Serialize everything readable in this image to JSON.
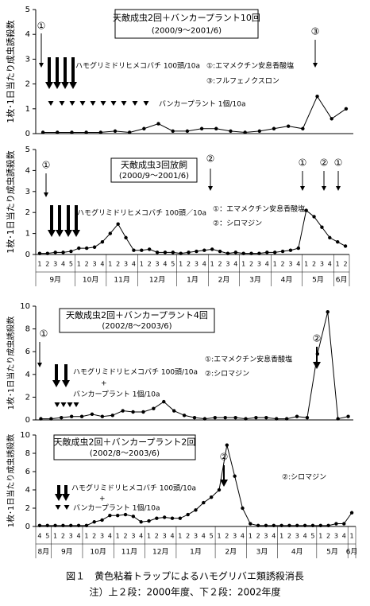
{
  "chart_data": [
    {
      "type": "line",
      "title": "天敵成虫2回＋バンカープラント10回",
      "subtitle": "(2000/9～2001/6)",
      "ylabel": "1枚･1日当たり成虫誘殺数",
      "ylim": [
        0,
        5
      ],
      "yticks": [
        0,
        1,
        2,
        3,
        4,
        5
      ],
      "categories": [
        null,
        null,
        null,
        null,
        null,
        null,
        null,
        null,
        null,
        null,
        null,
        null,
        null,
        null,
        null,
        null,
        null,
        null,
        null,
        null,
        null,
        null
      ],
      "values": [
        0.05,
        0.05,
        0.05,
        0.05,
        0.05,
        0.1,
        0.05,
        0.2,
        0.4,
        0.1,
        0.1,
        0.2,
        0.2,
        0.1,
        0.05,
        0.1,
        0.2,
        0.3,
        0.2,
        1.5,
        0.6,
        1.0
      ],
      "color": "#000000",
      "annotations": [
        "①",
        "ハモグリミドリヒメコバチ 100頭/10a",
        "①:エマメクチン安息香酸塩",
        "③:フルフェノクスロン",
        "バンカープラント 1個/10a",
        "③"
      ]
    },
    {
      "type": "line",
      "title": "天敵成虫3回放飼",
      "subtitle": "(2000/9～2001/6)",
      "ylabel": "1枚･1日当たり成虫誘殺数",
      "ylim": [
        0,
        5
      ],
      "yticks": [
        0,
        1,
        2,
        3,
        4,
        5
      ],
      "categories": [
        "1",
        "2",
        "3",
        "4",
        "5",
        "1",
        "2",
        "3",
        "4",
        "1",
        "2",
        "3",
        "4",
        "1",
        "2",
        "3",
        "4",
        "5",
        "1",
        "2",
        "3",
        "4",
        "1",
        "2",
        "3",
        "4",
        "1",
        "2",
        "3",
        "4",
        "1",
        "2",
        "3",
        "4",
        "1",
        "2",
        "3",
        "4",
        "1",
        "2"
      ],
      "months": [
        "9月",
        "10月",
        "11月",
        "12月",
        "1月",
        "2月",
        "3月",
        "4月",
        "5月",
        "6月"
      ],
      "values": [
        0.05,
        0.05,
        0.1,
        0.1,
        0.15,
        0.3,
        0.3,
        0.35,
        0.6,
        1.0,
        1.45,
        0.8,
        0.2,
        0.2,
        0.25,
        0.1,
        0.1,
        0.1,
        0.05,
        0.1,
        0.15,
        0.2,
        0.25,
        0.15,
        0.05,
        0.1,
        0.05,
        0.05,
        0.05,
        0.1,
        0.1,
        0.15,
        0.2,
        0.3,
        2.1,
        1.8,
        1.3,
        0.8,
        0.6,
        0.4
      ],
      "color": "#000000",
      "annotations": [
        "①",
        "ハモグリミドリヒメコバチ 100頭／10a",
        "①：エマメクチン安息香酸塩",
        "②：シロマジン",
        "②",
        "①",
        "②",
        "①"
      ]
    },
    {
      "type": "line",
      "title": "天敵成虫2回＋バンカープラント4回",
      "subtitle": "(2002/8～2003/6)",
      "ylabel": "1枚･1日当たり成虫誘殺数",
      "ylim": [
        0,
        10
      ],
      "yticks": [
        0,
        2,
        4,
        6,
        8,
        10
      ],
      "categories": [
        null,
        null,
        null,
        null,
        null,
        null,
        null,
        null,
        null,
        null,
        null,
        null,
        null,
        null,
        null,
        null,
        null,
        null,
        null,
        null,
        null,
        null,
        null,
        null,
        null,
        null,
        null,
        null,
        null,
        null,
        null
      ],
      "values": [
        0.1,
        0.1,
        0.2,
        0.3,
        0.3,
        0.5,
        0.3,
        0.4,
        0.8,
        0.7,
        0.7,
        1.0,
        1.6,
        0.8,
        0.4,
        0.2,
        0.1,
        0.2,
        0.2,
        0.2,
        0.1,
        0.2,
        0.2,
        0.1,
        0.1,
        0.3,
        0.2,
        5.8,
        9.5,
        0.1,
        0.3
      ],
      "color": "#000000",
      "annotations": [
        "①",
        "ハモグリミドリヒメコバチ 100頭/10a",
        "+",
        "バンカープラント 1個/10a",
        "①:エマメクチン安息香酸塩",
        "②:シロマジン",
        "②"
      ]
    },
    {
      "type": "line",
      "title": "天敵成虫2回＋バンカープラント2回",
      "subtitle": "(2002/8～2003/6)",
      "ylabel": "1枚･1日当たり成虫誘殺数",
      "ylim": [
        0,
        10
      ],
      "yticks": [
        0,
        2,
        4,
        6,
        8,
        10
      ],
      "categories": [
        "4",
        "5",
        "1",
        "2",
        "3",
        "4",
        "1",
        "2",
        "3",
        "4",
        "1",
        "2",
        "3",
        "4",
        "1",
        "2",
        "3",
        "4",
        "1",
        "2",
        "3",
        "4",
        "5",
        "1",
        "2",
        "3",
        "4",
        "1",
        "2",
        "3",
        "4",
        "1",
        "2",
        "3",
        "4",
        "5",
        "1",
        "2",
        "3",
        "4",
        "1"
      ],
      "months": [
        "8月",
        "9月",
        "10月",
        "11月",
        "12月",
        "1月",
        "2月",
        "3月",
        "4月",
        "5月",
        "6月"
      ],
      "values": [
        0.1,
        0.1,
        0.1,
        0.1,
        0.1,
        0.1,
        0.1,
        0.5,
        0.7,
        1.2,
        1.2,
        1.3,
        1.1,
        0.5,
        0.6,
        0.9,
        1.0,
        0.9,
        0.9,
        1.3,
        1.8,
        2.6,
        3.2,
        4.0,
        8.9,
        5.5,
        2.0,
        0.3,
        0.1,
        0.1,
        0.1,
        0.1,
        0.1,
        0.1,
        0.1,
        0.1,
        0.1,
        0.1,
        0.3,
        0.3,
        1.5
      ],
      "color": "#000000",
      "annotations": [
        "ハモグリミドリヒメコバチ 100頭/10a",
        "+",
        "バンカープラント 1個/10a",
        "②:シロマジン",
        "②"
      ]
    }
  ],
  "caption": [
    "図１　黄色粘着トラップによるハモグリバエ類誘殺消長",
    "注）上２段：2000年度、下２段：2002年度"
  ]
}
